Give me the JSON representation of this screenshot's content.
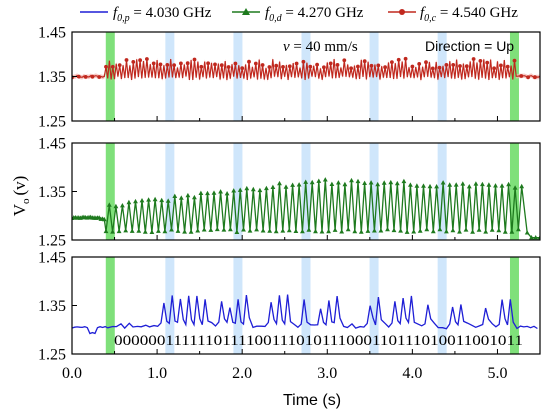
{
  "chart_data": {
    "type": "line",
    "x_axis": {
      "label": "Time (s)",
      "range": [
        0.0,
        5.5
      ],
      "ticks": [
        0.0,
        1.0,
        2.0,
        3.0,
        4.0,
        5.0
      ],
      "tick_labels": [
        "0.0",
        "1.0",
        "2.0",
        "3.0",
        "4.0",
        "5.0"
      ]
    },
    "y_axis_label": "V",
    "y_axis_label_sub": "o",
    "y_axis_label_unit": "(v)",
    "legend": {
      "placement": "top",
      "entries": [
        {
          "sym": "f",
          "sub": "0,p",
          "value": " = 4.030 GHz",
          "color": "#1f1fd6",
          "marker": "none"
        },
        {
          "sym": "f",
          "sub": "0,d",
          "value": " = 4.270 GHz",
          "color": "#1e7a1e",
          "marker": "triangle"
        },
        {
          "sym": "f",
          "sub": "0,c",
          "value": " = 4.540 GHz",
          "color": "#c0281e",
          "marker": "circle"
        }
      ]
    },
    "annotations": {
      "speed": "v = 40 mm/s",
      "speed_sym": "v",
      "speed_rest": " = 40 mm/s",
      "direction": "Direction = Up"
    },
    "green_markers_x": [
      0.45,
      5.2
    ],
    "blue_bands_x": [
      1.15,
      1.95,
      2.75,
      3.55,
      4.35
    ],
    "panels": [
      {
        "ylim": [
          1.25,
          1.45
        ],
        "ticks": [
          1.25,
          1.35,
          1.45
        ],
        "tick_labels": [
          "1.25",
          "1.35",
          "1.45"
        ],
        "series": {
          "color": "#c0281e",
          "marker": "circle",
          "band_color": "#f4b6b0",
          "baseline": 1.35,
          "start_end": [
            0.4,
            5.2
          ],
          "peak": 1.38,
          "valley": 1.342,
          "cycles_per_s": 20.5
        }
      },
      {
        "ylim": [
          1.25,
          1.45
        ],
        "ticks": [
          1.25,
          1.35,
          1.45
        ],
        "tick_labels": [
          "1.25",
          "1.35",
          "1.45"
        ],
        "series": {
          "color": "#1e7a1e",
          "marker": "triangle",
          "pre_level": 1.296,
          "post_level": 1.255,
          "start_end": [
            0.4,
            5.3
          ],
          "valley": 1.266,
          "peak_start": 1.325,
          "peak_max": 1.375,
          "cycles_per_s": 13
        }
      },
      {
        "ylim": [
          1.25,
          1.45
        ],
        "ticks": [
          1.25,
          1.35,
          1.45
        ],
        "tick_labels": [
          "1.25",
          "1.35",
          "1.45"
        ],
        "bit_string": "0000001111110111100111010111000110111010011001011",
        "series": {
          "color": "#1f1fd6",
          "marker": "none",
          "baseline": 1.305,
          "one_level": 1.355,
          "zero_level": 1.31,
          "bits_start_end": [
            0.45,
            5.2
          ]
        }
      }
    ]
  }
}
